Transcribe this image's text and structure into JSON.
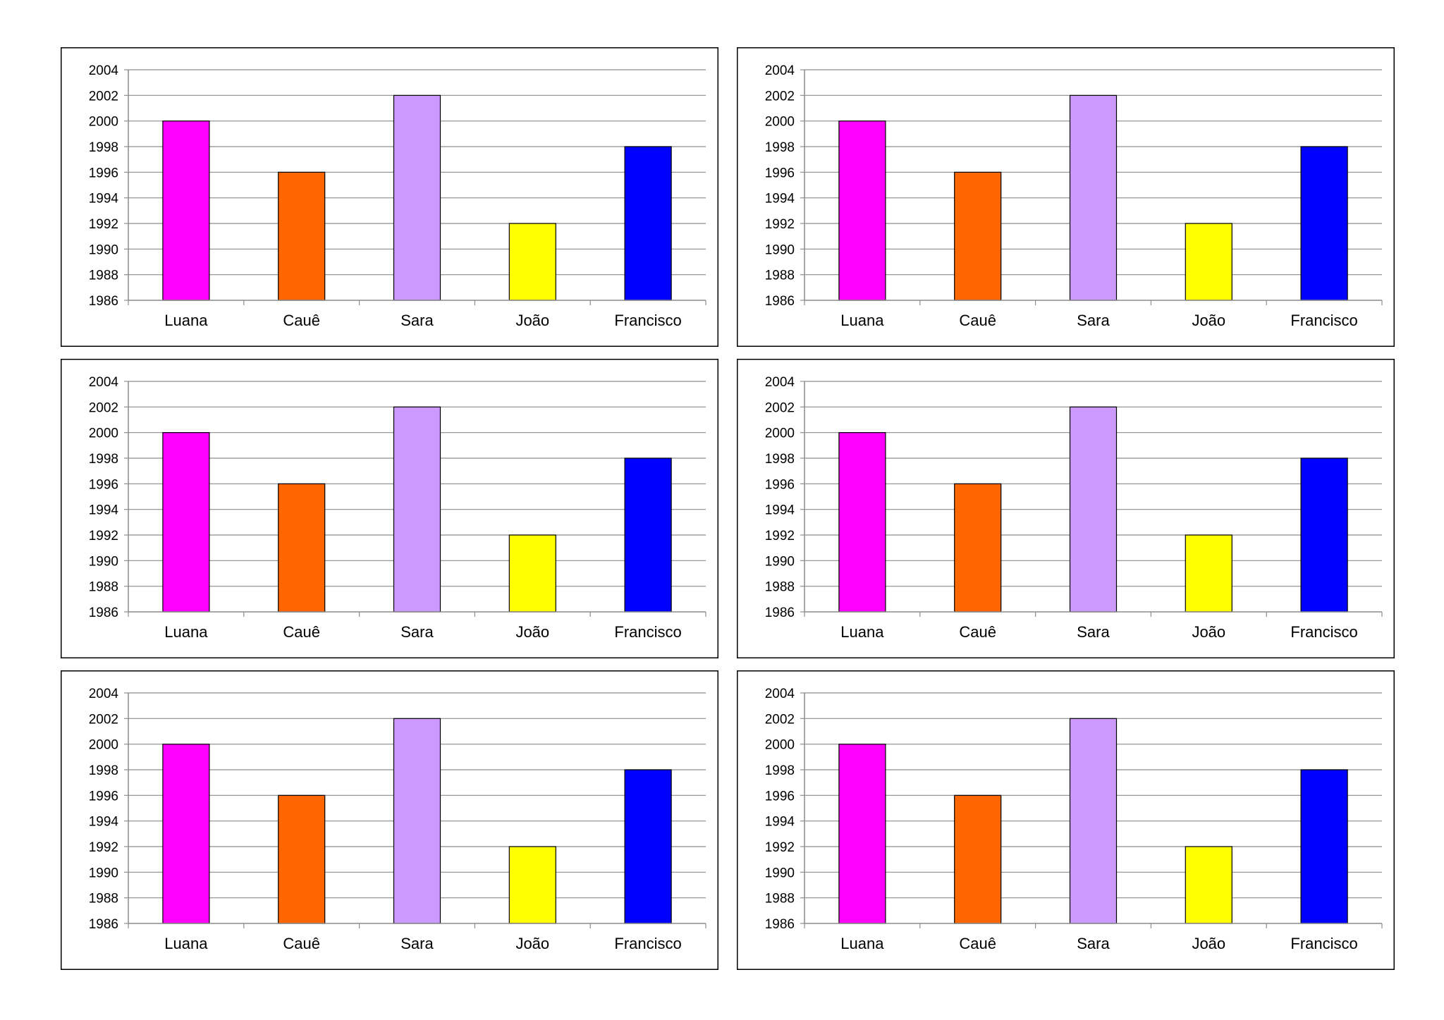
{
  "chart_data": [
    {
      "type": "bar",
      "title": "",
      "xlabel": "",
      "ylabel": "",
      "categories": [
        "Luana",
        "Cauê",
        "Sara",
        "João",
        "Francisco"
      ],
      "values": [
        2000,
        1996,
        2002,
        1992,
        1998
      ],
      "colors": [
        "#ff00ff",
        "#ff6600",
        "#cc99ff",
        "#ffff00",
        "#0000ff"
      ],
      "ylim": [
        1986,
        2004
      ],
      "yticks": [
        "1986",
        "1988",
        "1990",
        "1992",
        "1994",
        "1996",
        "1998",
        "2000",
        "2002",
        "2004"
      ],
      "grid": true,
      "legend": "none"
    },
    {
      "type": "bar",
      "title": "",
      "xlabel": "",
      "ylabel": "",
      "categories": [
        "Luana",
        "Cauê",
        "Sara",
        "João",
        "Francisco"
      ],
      "values": [
        2000,
        1996,
        2002,
        1992,
        1998
      ],
      "colors": [
        "#ff00ff",
        "#ff6600",
        "#cc99ff",
        "#ffff00",
        "#0000ff"
      ],
      "ylim": [
        1986,
        2004
      ],
      "yticks": [
        "1986",
        "1988",
        "1990",
        "1992",
        "1994",
        "1996",
        "1998",
        "2000",
        "2002",
        "2004"
      ],
      "grid": true,
      "legend": "none"
    },
    {
      "type": "bar",
      "title": "",
      "xlabel": "",
      "ylabel": "",
      "categories": [
        "Luana",
        "Cauê",
        "Sara",
        "João",
        "Francisco"
      ],
      "values": [
        2000,
        1996,
        2002,
        1992,
        1998
      ],
      "colors": [
        "#ff00ff",
        "#ff6600",
        "#cc99ff",
        "#ffff00",
        "#0000ff"
      ],
      "ylim": [
        1986,
        2004
      ],
      "yticks": [
        "1986",
        "1988",
        "1990",
        "1992",
        "1994",
        "1996",
        "1998",
        "2000",
        "2002",
        "2004"
      ],
      "grid": true,
      "legend": "none"
    },
    {
      "type": "bar",
      "title": "",
      "xlabel": "",
      "ylabel": "",
      "categories": [
        "Luana",
        "Cauê",
        "Sara",
        "João",
        "Francisco"
      ],
      "values": [
        2000,
        1996,
        2002,
        1992,
        1998
      ],
      "colors": [
        "#ff00ff",
        "#ff6600",
        "#cc99ff",
        "#ffff00",
        "#0000ff"
      ],
      "ylim": [
        1986,
        2004
      ],
      "yticks": [
        "1986",
        "1988",
        "1990",
        "1992",
        "1994",
        "1996",
        "1998",
        "2000",
        "2002",
        "2004"
      ],
      "grid": true,
      "legend": "none"
    },
    {
      "type": "bar",
      "title": "",
      "xlabel": "",
      "ylabel": "",
      "categories": [
        "Luana",
        "Cauê",
        "Sara",
        "João",
        "Francisco"
      ],
      "values": [
        2000,
        1996,
        2002,
        1992,
        1998
      ],
      "colors": [
        "#ff00ff",
        "#ff6600",
        "#cc99ff",
        "#ffff00",
        "#0000ff"
      ],
      "ylim": [
        1986,
        2004
      ],
      "yticks": [
        "1986",
        "1988",
        "1990",
        "1992",
        "1994",
        "1996",
        "1998",
        "2000",
        "2002",
        "2004"
      ],
      "grid": true,
      "legend": "none"
    },
    {
      "type": "bar",
      "title": "",
      "xlabel": "",
      "ylabel": "",
      "categories": [
        "Luana",
        "Cauê",
        "Sara",
        "João",
        "Francisco"
      ],
      "values": [
        2000,
        1996,
        2002,
        1992,
        1998
      ],
      "colors": [
        "#ff00ff",
        "#ff6600",
        "#cc99ff",
        "#ffff00",
        "#0000ff"
      ],
      "ylim": [
        1986,
        2004
      ],
      "yticks": [
        "1986",
        "1988",
        "1990",
        "1992",
        "1994",
        "1996",
        "1998",
        "2000",
        "2002",
        "2004"
      ],
      "grid": true,
      "legend": "none"
    }
  ]
}
